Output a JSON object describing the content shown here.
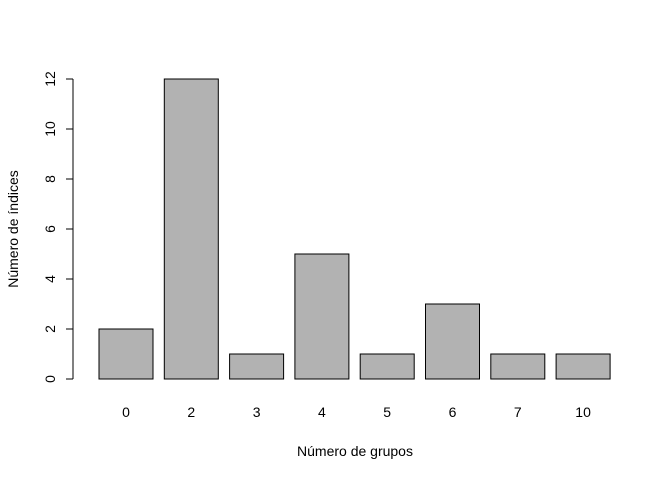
{
  "chart_data": {
    "type": "bar",
    "title": "",
    "xlabel": "Número de grupos",
    "ylabel": "Número de índices",
    "categories": [
      "0",
      "2",
      "3",
      "4",
      "5",
      "6",
      "7",
      "10"
    ],
    "values": [
      2,
      12,
      1,
      5,
      1,
      3,
      1,
      1
    ],
    "ylim": [
      0,
      12
    ],
    "yticks": [
      "0",
      "2",
      "4",
      "6",
      "8",
      "10",
      "12"
    ],
    "grid": false,
    "legend": "none",
    "bar_color": "#b2b2b2",
    "bar_edge_color": "#000000"
  }
}
